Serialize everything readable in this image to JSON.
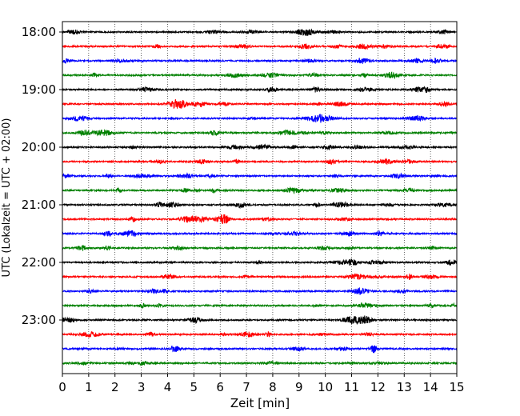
{
  "chart_data": {
    "type": "line",
    "title": "",
    "xlabel": "Zeit  [min]",
    "ylabel": "UTC (Lokalzeit = UTC + 02:00)",
    "xlim": [
      0,
      15
    ],
    "x_ticks": [
      "0",
      "1",
      "2",
      "3",
      "4",
      "5",
      "6",
      "7",
      "8",
      "9",
      "10",
      "11",
      "12",
      "13",
      "14",
      "15"
    ],
    "y_tick_labels": [
      "18:00",
      "19:00",
      "20:00",
      "21:00",
      "22:00",
      "23:00"
    ],
    "trace_interval_min": 15,
    "traces_per_hour": 4,
    "trace_start_times": [
      "18:00",
      "18:15",
      "18:30",
      "18:45",
      "19:00",
      "19:15",
      "19:30",
      "19:45",
      "20:00",
      "20:15",
      "20:30",
      "20:45",
      "21:00",
      "21:15",
      "21:30",
      "21:45",
      "22:00",
      "22:15",
      "22:30",
      "22:45",
      "23:00",
      "23:15",
      "23:30",
      "23:45"
    ],
    "trace_colors": [
      "#000000",
      "#ff0000",
      "#0000ff",
      "#008000"
    ],
    "grid": "vertical dotted at each minute",
    "legend": "none"
  }
}
